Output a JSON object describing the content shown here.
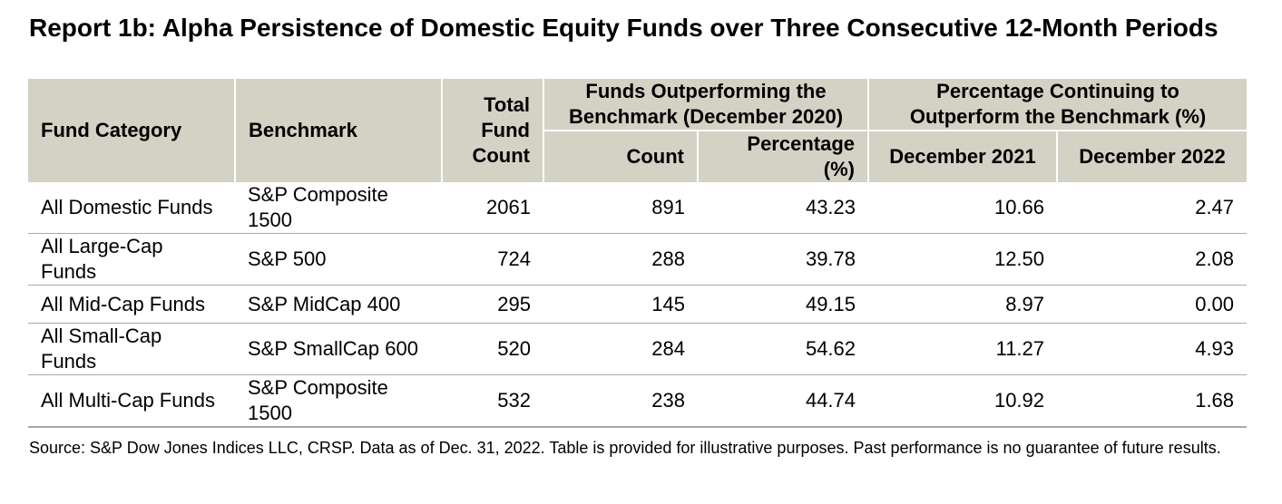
{
  "title": "Report 1b: Alpha Persistence of Domestic Equity Funds over Three Consecutive 12-Month Periods",
  "table": {
    "headers": {
      "fund_category": "Fund Category",
      "benchmark": "Benchmark",
      "total_fund_count": "Total Fund Count",
      "outperforming_group": "Funds Outperforming the Benchmark (December 2020)",
      "count": "Count",
      "percentage": "Percentage (%)",
      "continuing_group": "Percentage Continuing to Outperform the Benchmark (%)",
      "december_2021": "December 2021",
      "december_2022": "December 2022"
    },
    "rows": [
      {
        "fund_category": "All Domestic Funds",
        "benchmark": "S&P Composite 1500",
        "total": "2061",
        "count": "891",
        "percentage": "43.23",
        "dec_2021": "10.66",
        "dec_2022": "2.47"
      },
      {
        "fund_category": "All Large-Cap Funds",
        "benchmark": "S&P 500",
        "total": "724",
        "count": "288",
        "percentage": "39.78",
        "dec_2021": "12.50",
        "dec_2022": "2.08"
      },
      {
        "fund_category": "All Mid-Cap Funds",
        "benchmark": "S&P MidCap 400",
        "total": "295",
        "count": "145",
        "percentage": "49.15",
        "dec_2021": "8.97",
        "dec_2022": "0.00"
      },
      {
        "fund_category": "All Small-Cap Funds",
        "benchmark": "S&P SmallCap 600",
        "total": "520",
        "count": "284",
        "percentage": "54.62",
        "dec_2021": "11.27",
        "dec_2022": "4.93"
      },
      {
        "fund_category": "All Multi-Cap Funds",
        "benchmark": "S&P Composite 1500",
        "total": "532",
        "count": "238",
        "percentage": "44.74",
        "dec_2021": "10.92",
        "dec_2022": "1.68"
      }
    ]
  },
  "source_note": "Source: S&P Dow Jones Indices LLC, CRSP.  Data as of Dec. 31, 2022.  Table is provided for illustrative purposes.  Past performance is no guarantee of future results.",
  "colors": {
    "header_background": "#d4d1c5",
    "row_divider": "#a9a9a9"
  }
}
